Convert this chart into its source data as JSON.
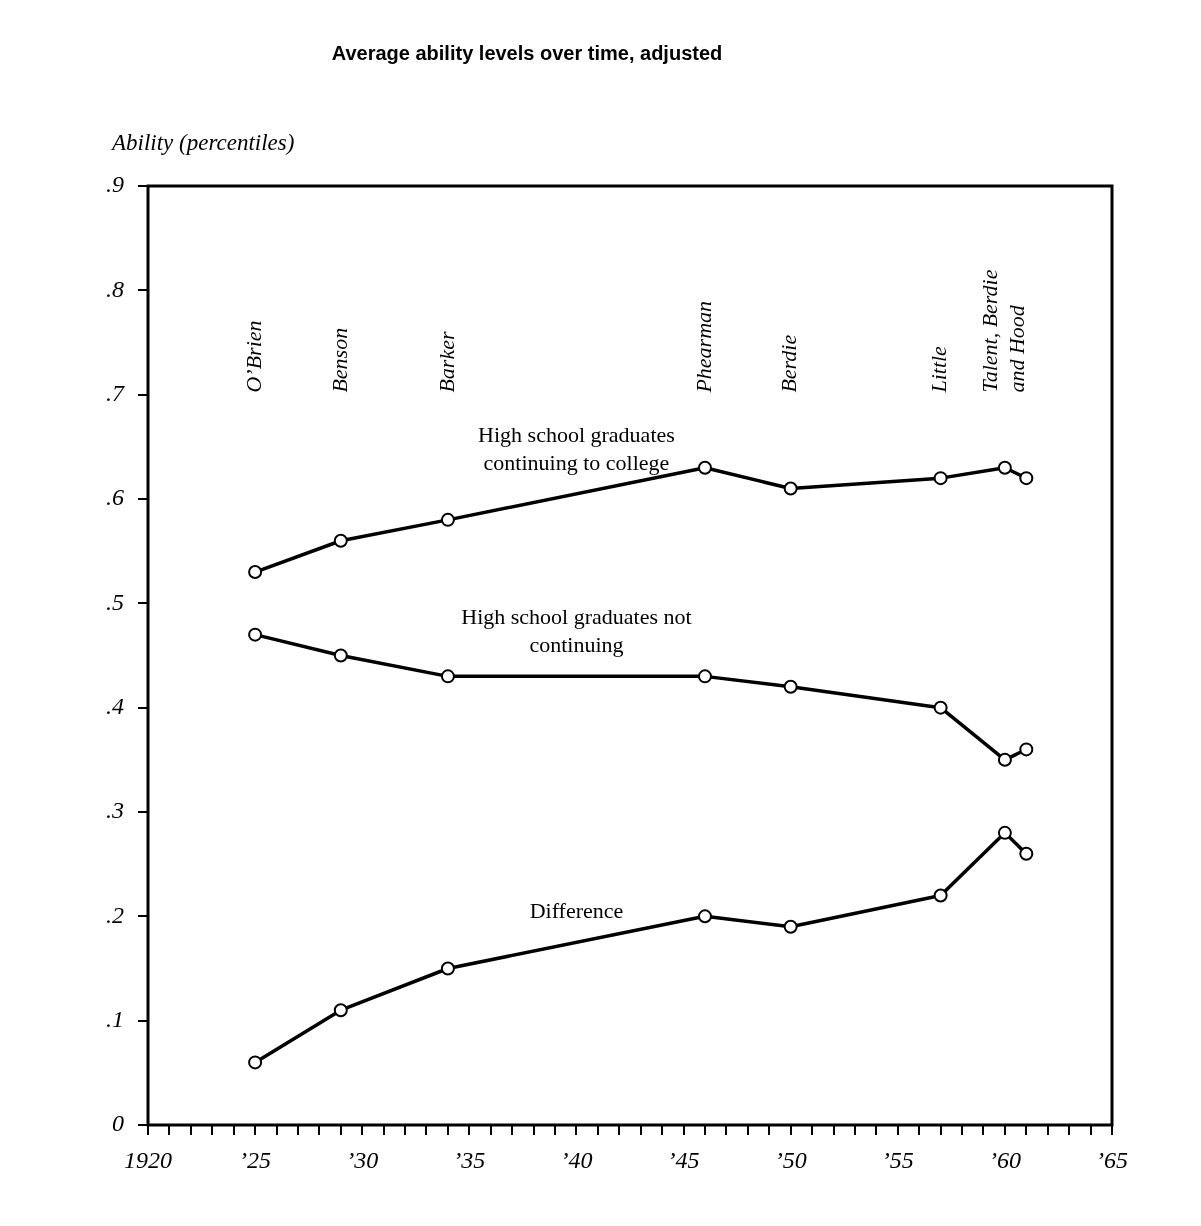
{
  "chart_data": {
    "type": "line",
    "title": "Average ability levels over time, adjusted",
    "ylabel": "Ability (percentiles)",
    "x": [
      1925,
      1929,
      1934,
      1946,
      1950,
      1957,
      1960,
      1961
    ],
    "series": [
      {
        "name": "High school graduates continuing to college",
        "color": "#000000",
        "values": [
          0.53,
          0.56,
          0.58,
          0.63,
          0.61,
          0.62,
          0.63,
          0.62
        ]
      },
      {
        "name": "High school graduates not continuing",
        "color": "#000000",
        "values": [
          0.47,
          0.45,
          0.43,
          0.43,
          0.42,
          0.4,
          0.35,
          0.36
        ]
      },
      {
        "name": "Difference",
        "color": "#000000",
        "values": [
          0.06,
          0.11,
          0.15,
          0.2,
          0.19,
          0.22,
          0.28,
          0.26
        ]
      }
    ],
    "annotations": [
      "O’Brien",
      "Benson",
      "Barker",
      "Phearman",
      "Berdie",
      "Little",
      "Talent, Berdie and Hood"
    ],
    "xlim": [
      1920,
      1965
    ],
    "xticks": [
      {
        "value": 1920,
        "label": "1920"
      },
      {
        "value": 1921,
        "label": null
      },
      {
        "value": 1922,
        "label": null
      },
      {
        "value": 1923,
        "label": null
      },
      {
        "value": 1924,
        "label": null
      },
      {
        "value": 1925,
        "label": "’25"
      },
      {
        "value": 1926,
        "label": null
      },
      {
        "value": 1927,
        "label": null
      },
      {
        "value": 1928,
        "label": null
      },
      {
        "value": 1929,
        "label": null
      },
      {
        "value": 1930,
        "label": "’30"
      },
      {
        "value": 1931,
        "label": null
      },
      {
        "value": 1932,
        "label": null
      },
      {
        "value": 1933,
        "label": null
      },
      {
        "value": 1934,
        "label": null
      },
      {
        "value": 1935,
        "label": "’35"
      },
      {
        "value": 1936,
        "label": null
      },
      {
        "value": 1937,
        "label": null
      },
      {
        "value": 1938,
        "label": null
      },
      {
        "value": 1939,
        "label": null
      },
      {
        "value": 1940,
        "label": "’40"
      },
      {
        "value": 1941,
        "label": null
      },
      {
        "value": 1942,
        "label": null
      },
      {
        "value": 1943,
        "label": null
      },
      {
        "value": 1944,
        "label": null
      },
      {
        "value": 1945,
        "label": "’45"
      },
      {
        "value": 1946,
        "label": null
      },
      {
        "value": 1947,
        "label": null
      },
      {
        "value": 1948,
        "label": null
      },
      {
        "value": 1949,
        "label": null
      },
      {
        "value": 1950,
        "label": "’50"
      },
      {
        "value": 1951,
        "label": null
      },
      {
        "value": 1952,
        "label": null
      },
      {
        "value": 1953,
        "label": null
      },
      {
        "value": 1954,
        "label": null
      },
      {
        "value": 1955,
        "label": "’55"
      },
      {
        "value": 1956,
        "label": null
      },
      {
        "value": 1957,
        "label": null
      },
      {
        "value": 1958,
        "label": null
      },
      {
        "value": 1959,
        "label": null
      },
      {
        "value": 1960,
        "label": "’60"
      },
      {
        "value": 1961,
        "label": null
      },
      {
        "value": 1962,
        "label": null
      },
      {
        "value": 1963,
        "label": null
      },
      {
        "value": 1964,
        "label": null
      },
      {
        "value": 1965,
        "label": "’65"
      }
    ],
    "ylim": [
      0,
      0.9
    ],
    "yticks": [
      0,
      {
        "value": 0.1,
        "label": ".1"
      },
      {
        "value": 0.2,
        "label": ".2"
      },
      {
        "value": 0.3,
        "label": ".3"
      },
      {
        "value": 0.4,
        "label": ".4"
      },
      {
        "value": 0.5,
        "label": ".5"
      },
      {
        "value": 0.6,
        "label": ".6"
      },
      {
        "value": 0.7,
        "label": ".7"
      },
      {
        "value": 0.8,
        "label": ".8"
      },
      {
        "value": 0.9,
        "label": ".9"
      }
    ],
    "marker": "circle",
    "line_style": "solid"
  }
}
